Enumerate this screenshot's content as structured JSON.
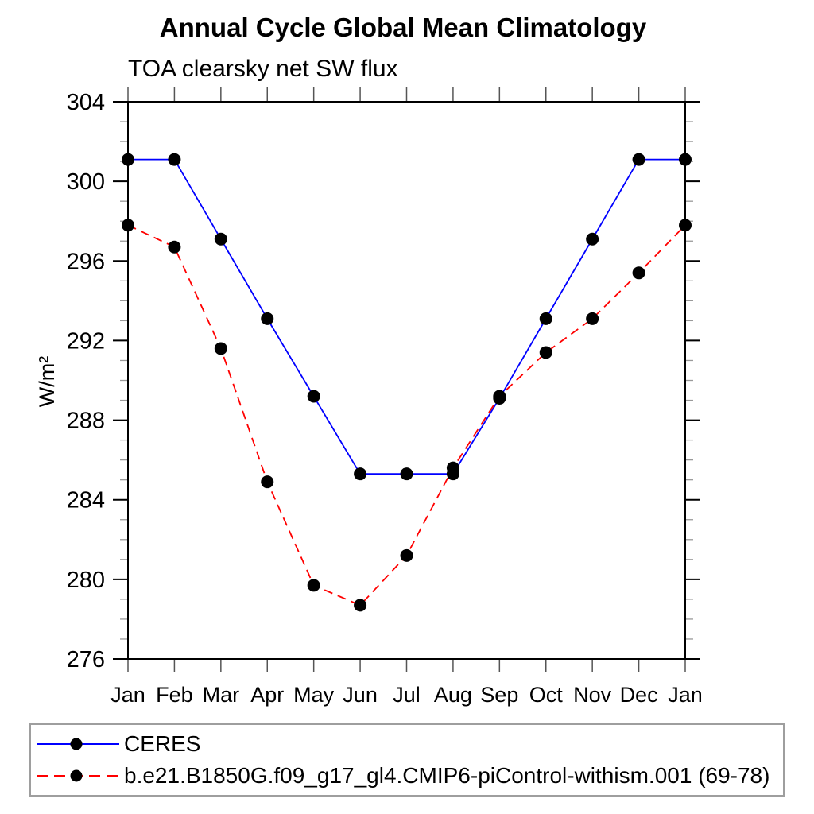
{
  "header": {
    "title": "Annual Cycle Global Mean Climatology",
    "subtitle": "TOA clearsky net SW flux"
  },
  "chart_data": {
    "type": "line",
    "title": "Annual Cycle Global Mean Climatology",
    "subtitle": "TOA clearsky net SW flux",
    "xlabel": "",
    "ylabel": "W/m²",
    "categories": [
      "Jan",
      "Feb",
      "Mar",
      "Apr",
      "May",
      "Jun",
      "Jul",
      "Aug",
      "Sep",
      "Oct",
      "Nov",
      "Dec",
      "Jan"
    ],
    "ylim": [
      276,
      304
    ],
    "ytick_major_interval": 4,
    "ytick_minor_interval": 1,
    "grid": false,
    "legend_position": "bottom-left-box",
    "series": [
      {
        "name": "CERES",
        "color": "#0000ff",
        "line_style": "solid",
        "marker": "filled-circle",
        "marker_color": "#000000",
        "values": [
          301.1,
          301.1,
          297.1,
          293.1,
          289.2,
          285.3,
          285.3,
          285.3,
          289.1,
          293.1,
          297.1,
          301.1,
          301.1
        ]
      },
      {
        "name": "b.e21.B1850G.f09_g17_gl4.CMIP6-piControl-withism.001 (69-78)",
        "color": "#ff0000",
        "line_style": "dashed",
        "marker": "filled-circle",
        "marker_color": "#000000",
        "values": [
          297.8,
          296.7,
          291.6,
          284.9,
          279.7,
          278.7,
          281.2,
          285.6,
          289.2,
          291.4,
          293.1,
          295.4,
          297.8
        ]
      }
    ],
    "axis_color": "#000000",
    "minor_tick_color": "#999999",
    "month_tick_color": "#555555",
    "legend_border_color": "#9e9e9e"
  }
}
